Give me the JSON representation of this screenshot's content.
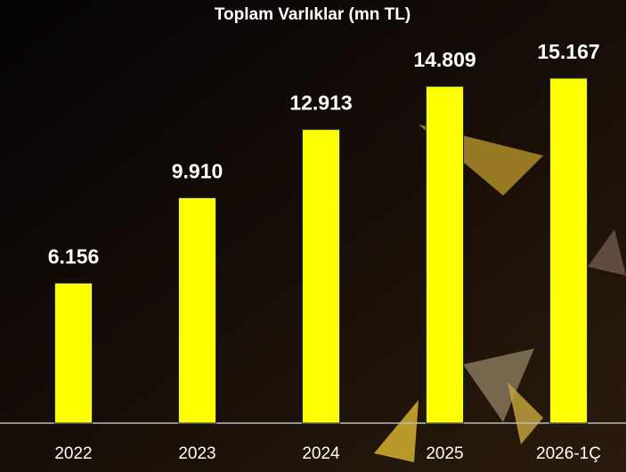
{
  "chart_data": {
    "type": "bar",
    "title": "Toplam Varlıklar (mn TL)",
    "categories": [
      "2022",
      "2023",
      "2024",
      "2025",
      "2026-1Ç"
    ],
    "values": [
      6156,
      9910,
      12913,
      14809,
      15167
    ],
    "value_labels": [
      "6.156",
      "9.910",
      "12.913",
      "14.809",
      "15.167"
    ],
    "color": "#ffff00"
  }
}
